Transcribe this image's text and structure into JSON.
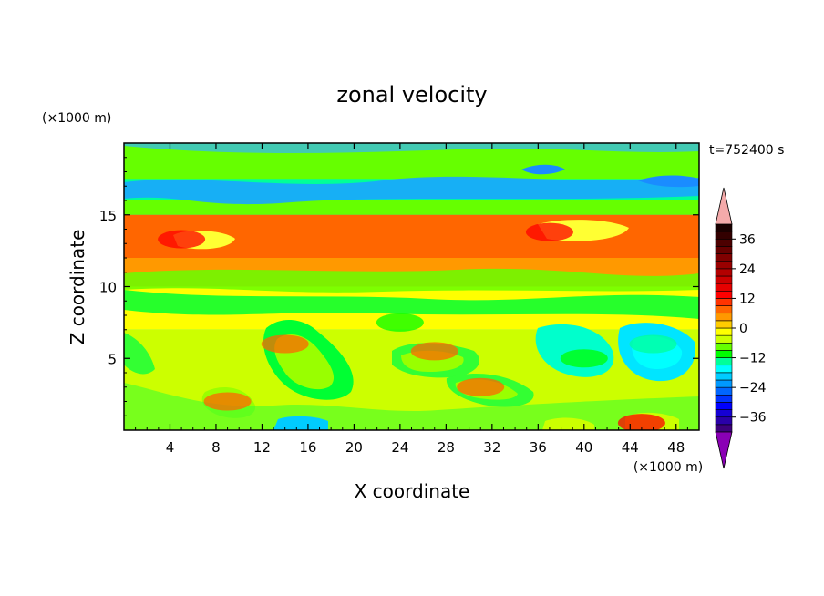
{
  "chart_data": {
    "type": "heatmap",
    "title": "zonal velocity",
    "xlabel": "X coordinate",
    "ylabel": "Z coordinate",
    "x_unit": "(×1000 m)",
    "y_unit": "(×1000 m)",
    "time_label": "t=752400 s",
    "xlim": [
      0,
      50
    ],
    "ylim": [
      0,
      20
    ],
    "x_ticks": [
      4,
      8,
      12,
      16,
      20,
      24,
      28,
      32,
      36,
      40,
      44,
      48
    ],
    "y_ticks": [
      5,
      10,
      15
    ],
    "colorbar": {
      "levels": [
        -42,
        -39,
        -36,
        -33,
        -30,
        -27,
        -24,
        -21,
        -18,
        -15,
        -12,
        -9,
        -6,
        -3,
        0,
        3,
        6,
        9,
        12,
        15,
        18,
        21,
        24,
        27,
        30,
        33,
        36,
        39,
        42
      ],
      "colors": [
        "#3d007c",
        "#2a00a8",
        "#1500d4",
        "#0000ff",
        "#0033ff",
        "#0066ff",
        "#0099ff",
        "#00ccff",
        "#00ffff",
        "#00ff99",
        "#00ff00",
        "#66ff00",
        "#ccff00",
        "#ffff00",
        "#ffcc00",
        "#ff9900",
        "#ff6600",
        "#ff3300",
        "#ff0000",
        "#e60000",
        "#cc0000",
        "#b30000",
        "#990000",
        "#800000",
        "#660000",
        "#4d0000",
        "#330000",
        "#1a0000"
      ],
      "ticks": [
        -36,
        -24,
        -12,
        0,
        12,
        24,
        36
      ],
      "tick_labels": [
        "−36",
        "−24",
        "−12",
        "0",
        "12",
        "24",
        "36"
      ],
      "under_color": "#8a00b5",
      "over_color": "#f4aaaa"
    },
    "bands": [
      {
        "z_range": [
          17.5,
          20
        ],
        "value": -9
      },
      {
        "z_range": [
          16,
          17.5
        ],
        "value": -13
      },
      {
        "z_range": [
          15,
          16
        ],
        "value": -7
      },
      {
        "z_range": [
          12,
          15
        ],
        "value": 6
      },
      {
        "z_range": [
          10,
          12
        ],
        "value": 3
      },
      {
        "z_range": [
          7,
          10
        ],
        "value": -2
      },
      {
        "z_range": [
          0,
          7
        ],
        "value": -5
      }
    ],
    "features": [
      {
        "center": [
          5,
          13.3
        ],
        "value": 12
      },
      {
        "center": [
          37,
          13.8
        ],
        "value": 12
      },
      {
        "center": [
          14,
          6
        ],
        "value": 6
      },
      {
        "center": [
          27,
          5.5
        ],
        "value": 6
      },
      {
        "center": [
          31,
          3
        ],
        "value": 6
      },
      {
        "center": [
          9,
          2
        ],
        "value": 6
      },
      {
        "center": [
          40,
          5
        ],
        "value": -12
      },
      {
        "center": [
          46,
          6
        ],
        "value": -14
      },
      {
        "center": [
          24,
          7.5
        ],
        "value": -10
      },
      {
        "center": [
          45,
          0.5
        ],
        "value": 12
      }
    ]
  }
}
